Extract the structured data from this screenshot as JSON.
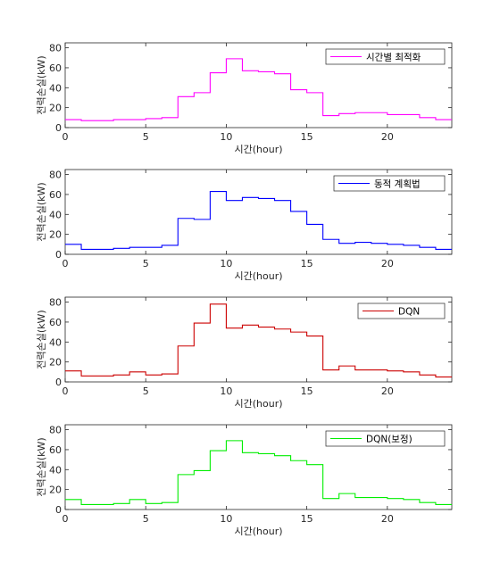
{
  "chart_data": [
    {
      "type": "line",
      "step": true,
      "xlabel": "시간(hour)",
      "ylabel": "전력손실(kW)",
      "xlim": [
        0,
        24
      ],
      "ylim": [
        0,
        85
      ],
      "xticks": [
        0,
        5,
        10,
        15,
        20
      ],
      "yticks": [
        0,
        20,
        40,
        60,
        80
      ],
      "legend_position": "top-right",
      "series": [
        {
          "name": "시간별 최적화",
          "color": "#ff00ff",
          "x": [
            0,
            1,
            2,
            3,
            4,
            5,
            6,
            7,
            8,
            9,
            10,
            11,
            12,
            13,
            14,
            15,
            16,
            17,
            18,
            19,
            20,
            21,
            22,
            23
          ],
          "values": [
            8,
            7,
            7,
            8,
            8,
            9,
            10,
            31,
            35,
            55,
            69,
            57,
            56,
            54,
            38,
            35,
            12,
            14,
            15,
            15,
            13,
            13,
            10,
            8
          ]
        }
      ]
    },
    {
      "type": "line",
      "step": true,
      "xlabel": "시간(hour)",
      "ylabel": "전력손실(kW)",
      "xlim": [
        0,
        24
      ],
      "ylim": [
        0,
        85
      ],
      "xticks": [
        0,
        5,
        10,
        15,
        20
      ],
      "yticks": [
        0,
        20,
        40,
        60,
        80
      ],
      "legend_position": "top-right",
      "series": [
        {
          "name": "동적 계획법",
          "color": "#0000ff",
          "x": [
            0,
            1,
            2,
            3,
            4,
            5,
            6,
            7,
            8,
            9,
            10,
            11,
            12,
            13,
            14,
            15,
            16,
            17,
            18,
            19,
            20,
            21,
            22,
            23
          ],
          "values": [
            10,
            5,
            5,
            6,
            7,
            7,
            9,
            36,
            35,
            63,
            54,
            57,
            56,
            54,
            43,
            30,
            15,
            11,
            12,
            11,
            10,
            9,
            7,
            5
          ]
        }
      ]
    },
    {
      "type": "line",
      "step": true,
      "xlabel": "시간(hour)",
      "ylabel": "전력손실(kW)",
      "xlim": [
        0,
        24
      ],
      "ylim": [
        0,
        85
      ],
      "xticks": [
        0,
        5,
        10,
        15,
        20
      ],
      "yticks": [
        0,
        20,
        40,
        60,
        80
      ],
      "legend_position": "top-right",
      "series": [
        {
          "name": "DQN",
          "color": "#cc0000",
          "x": [
            0,
            1,
            2,
            3,
            4,
            5,
            6,
            7,
            8,
            9,
            10,
            11,
            12,
            13,
            14,
            15,
            16,
            17,
            18,
            19,
            20,
            21,
            22,
            23
          ],
          "values": [
            11,
            6,
            6,
            7,
            10,
            7,
            8,
            36,
            59,
            78,
            54,
            57,
            55,
            53,
            50,
            46,
            12,
            16,
            12,
            12,
            11,
            10,
            7,
            5
          ]
        }
      ]
    },
    {
      "type": "line",
      "step": true,
      "xlabel": "시간(hour)",
      "ylabel": "전력손실(kW)",
      "xlim": [
        0,
        24
      ],
      "ylim": [
        0,
        85
      ],
      "xticks": [
        0,
        5,
        10,
        15,
        20
      ],
      "yticks": [
        0,
        20,
        40,
        60,
        80
      ],
      "legend_position": "top-right",
      "series": [
        {
          "name": "DQN(보정)",
          "color": "#00ee00",
          "x": [
            0,
            1,
            2,
            3,
            4,
            5,
            6,
            7,
            8,
            9,
            10,
            11,
            12,
            13,
            14,
            15,
            16,
            17,
            18,
            19,
            20,
            21,
            22,
            23
          ],
          "values": [
            10,
            5,
            5,
            6,
            10,
            6,
            7,
            35,
            39,
            59,
            69,
            57,
            56,
            54,
            49,
            45,
            11,
            16,
            12,
            12,
            11,
            10,
            7,
            5
          ]
        }
      ]
    }
  ]
}
